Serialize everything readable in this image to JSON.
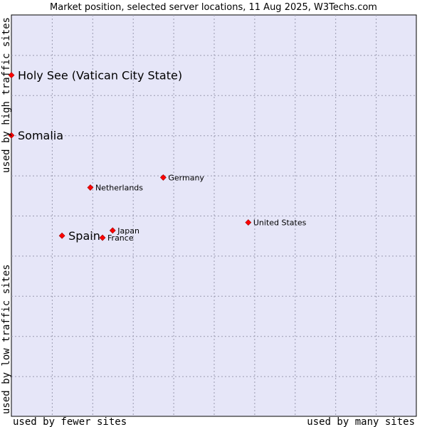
{
  "chart_data": {
    "type": "scatter",
    "title": "Market position, selected server locations, 11 Aug 2025, W3Techs.com",
    "x_axis": {
      "low_label": "used by fewer sites",
      "high_label": "used by many sites",
      "range": [
        0,
        100
      ],
      "grid": true
    },
    "y_axis": {
      "low_label": "used by low traffic sites",
      "high_label": "used by high traffic sites",
      "range": [
        0,
        100
      ],
      "grid": true
    },
    "points": [
      {
        "name": "Holy See (Vatican City State)",
        "x": 0.0,
        "y": 85.0,
        "emphasis": true
      },
      {
        "name": "Somalia",
        "x": 0.0,
        "y": 70.0,
        "emphasis": true
      },
      {
        "name": "Germany",
        "x": 37.5,
        "y": 59.5,
        "emphasis": false
      },
      {
        "name": "Netherlands",
        "x": 19.5,
        "y": 57.0,
        "emphasis": false
      },
      {
        "name": "United States",
        "x": 58.5,
        "y": 48.3,
        "emphasis": false
      },
      {
        "name": "Japan",
        "x": 25.0,
        "y": 46.3,
        "emphasis": false
      },
      {
        "name": "France",
        "x": 22.5,
        "y": 44.5,
        "emphasis": false
      },
      {
        "name": "Spain",
        "x": 12.5,
        "y": 45.0,
        "emphasis": true
      }
    ]
  },
  "colors": {
    "plot_background": "#e6e6f8",
    "marker": "#ff0000",
    "grid": "#9a9ab0",
    "text": "#000000"
  }
}
